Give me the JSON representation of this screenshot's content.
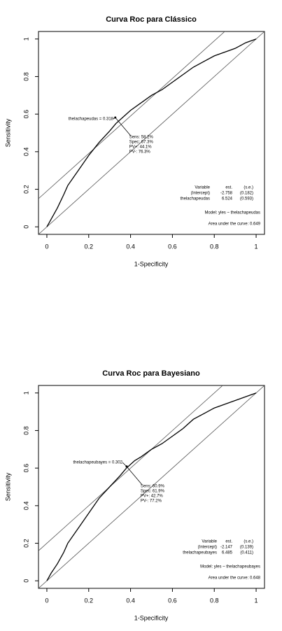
{
  "chart_data": [
    {
      "type": "line",
      "title": "Curva Roc para Clássico",
      "x_label": "1-Specificity",
      "y_label": "Sensitivity",
      "xlim": [
        -0.04,
        1.04
      ],
      "ylim": [
        -0.04,
        1.04
      ],
      "xticks": [
        0.0,
        0.2,
        0.4,
        0.6,
        0.8,
        1.0
      ],
      "yticks": [
        0.0,
        0.2,
        0.4,
        0.6,
        0.8,
        1.0
      ],
      "x": [
        0,
        0.02,
        0.05,
        0.08,
        0.1,
        0.15,
        0.2,
        0.25,
        0.3,
        0.33,
        0.36,
        0.4,
        0.45,
        0.5,
        0.55,
        0.6,
        0.65,
        0.7,
        0.75,
        0.8,
        0.85,
        0.9,
        0.95,
        1
      ],
      "series": [
        {
          "color": "#000000",
          "values": [
            0,
            0.04,
            0.1,
            0.17,
            0.22,
            0.3,
            0.38,
            0.45,
            0.51,
            0.55,
            0.58,
            0.62,
            0.66,
            0.7,
            0.73,
            0.77,
            0.81,
            0.85,
            0.88,
            0.91,
            0.93,
            0.95,
            0.98,
            1
          ]
        }
      ],
      "reference_lines": [
        {
          "slope": 1,
          "intercept": 0
        },
        {
          "slope": 1,
          "intercept": 0.19
        }
      ],
      "cutoff_point": {
        "x": 0.327,
        "y": 0.582
      },
      "cutoff_label": "thelachapeudas = 0.318",
      "stats": [
        "Sens: 58.2%",
        "Spec: 67.3%",
        "PV+: 44.1%",
        "PV-: 76.3%"
      ],
      "model_table": [
        [
          "Variable",
          "est.",
          "(s.e.)"
        ],
        [
          "(Intercept)",
          "-2.758",
          "(0.182)"
        ],
        [
          "thelachapeudas",
          "6.524",
          "(0.593)"
        ]
      ],
      "model": "Model: yles ~ thelachapeudas",
      "auc": "Area under the curve: 0.649"
    },
    {
      "type": "line",
      "title": "Curva Roc para Bayesiano",
      "x_label": "1-Specificity",
      "y_label": "Sensitivity",
      "xlim": [
        -0.04,
        1.04
      ],
      "ylim": [
        -0.04,
        1.04
      ],
      "xticks": [
        0.0,
        0.2,
        0.4,
        0.6,
        0.8,
        1.0
      ],
      "yticks": [
        0.0,
        0.2,
        0.4,
        0.6,
        0.8,
        1.0
      ],
      "x": [
        0,
        0.02,
        0.05,
        0.08,
        0.1,
        0.15,
        0.2,
        0.25,
        0.3,
        0.35,
        0.38,
        0.42,
        0.45,
        0.5,
        0.55,
        0.6,
        0.65,
        0.7,
        0.75,
        0.8,
        0.85,
        0.9,
        0.95,
        1
      ],
      "series": [
        {
          "color": "#000000",
          "values": [
            0,
            0.04,
            0.09,
            0.15,
            0.2,
            0.28,
            0.36,
            0.44,
            0.5,
            0.56,
            0.6,
            0.64,
            0.66,
            0.7,
            0.73,
            0.77,
            0.81,
            0.86,
            0.89,
            0.92,
            0.94,
            0.96,
            0.98,
            1
          ]
        }
      ],
      "reference_lines": [
        {
          "slope": 1,
          "intercept": 0
        },
        {
          "slope": 1,
          "intercept": 0.2
        }
      ],
      "cutoff_point": {
        "x": 0.381,
        "y": 0.609
      },
      "cutoff_label": "thelachapeubayes = 0.302",
      "stats": [
        "Sens: 60.9%",
        "Spec: 61.9%",
        "PV+: 42.7%",
        "PV-: 77.2%"
      ],
      "model_table": [
        [
          "Variable",
          "est.",
          "(s.e.)"
        ],
        [
          "(Intercept)",
          "-2.147",
          "(0.139)"
        ],
        [
          "thelachapeubayes",
          "6.485",
          "(0.411)"
        ]
      ],
      "model": "Model: yles ~ thelachapeubayes",
      "auc": "Area under the curve: 0.648"
    }
  ]
}
